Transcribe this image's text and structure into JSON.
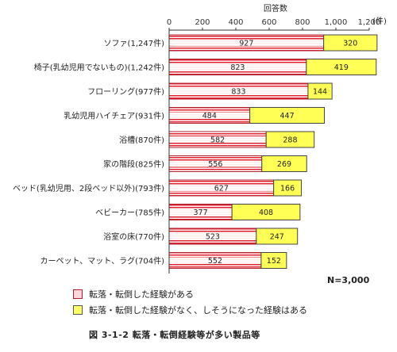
{
  "chart_data": {
    "type": "bar",
    "orientation": "horizontal",
    "stacked": true,
    "x_axis_title": "回答数",
    "x_unit": "(件)",
    "xlim": [
      0,
      1200
    ],
    "x_ticks": [
      "0",
      "200",
      "400",
      "600",
      "800",
      "1,000",
      "1,200"
    ],
    "categories": [
      "ソファ(1,247件)",
      "椅子(乳幼児用でないもの)(1,242件)",
      "フローリング(977件)",
      "乳幼児用ハイチェア(931件)",
      "浴槽(870件)",
      "家の階段(825件)",
      "ベッド(乳幼児用、2段ベッド以外)(793件)",
      "ベビーカー(785件)",
      "浴室の床(770件)",
      "カーペット、マット、ラグ(704件)"
    ],
    "series": [
      {
        "name": "転落・転倒した経験がある",
        "color": "#e0202e",
        "values": [
          927,
          823,
          833,
          484,
          582,
          556,
          627,
          377,
          523,
          552
        ]
      },
      {
        "name": "転落・転倒した経験がなく、しそうになった経験はある",
        "color": "#ffff55",
        "values": [
          320,
          419,
          144,
          447,
          288,
          269,
          166,
          408,
          247,
          152
        ]
      }
    ],
    "legend_position": "bottom-left",
    "grid": false
  },
  "legend": {
    "item1": "転落・転倒した経験がある",
    "item2": "転落・転倒した経験がなく、しそうになった経験はある"
  },
  "n_label": "N=3,000",
  "caption": "図 3-1-2 転落・転倒経験等が多い製品等"
}
